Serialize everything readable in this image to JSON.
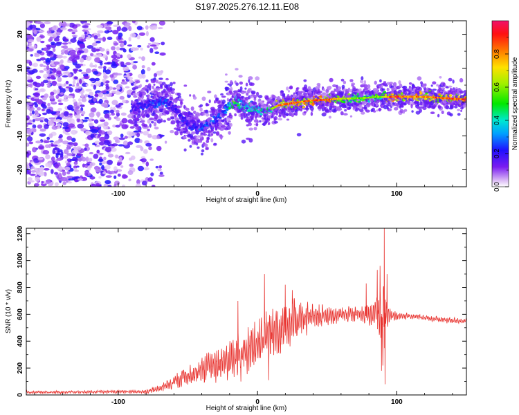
{
  "title": "S197.2025.276.12.11.E08",
  "chart_data": [
    {
      "type": "heatmap",
      "xlabel": "Height of straight line (km)",
      "ylabel": "Frequency (Hz)",
      "xlim": [
        -166,
        150
      ],
      "ylim": [
        -25,
        24
      ],
      "xticks": [
        -100,
        0,
        100
      ],
      "xtick_labels": [
        "-100",
        "0",
        "100"
      ],
      "yticks": [
        20,
        10,
        0,
        -10,
        -20
      ],
      "ytick_labels": [
        "20",
        "10",
        "0",
        "-10",
        "-20"
      ],
      "colorbar": {
        "label": "Normalized spectral amplitude",
        "range": [
          0,
          1
        ],
        "ticks": [
          0.0,
          0.2,
          0.4,
          0.6,
          0.8
        ],
        "tick_labels": [
          "0.0",
          "0.2",
          "0.4",
          "0.6",
          "0.8"
        ]
      },
      "ridge": {
        "x": [
          -88,
          -80,
          -72,
          -66,
          -62,
          -57,
          -52,
          -47,
          -42,
          -37,
          -32,
          -27,
          -22,
          -18,
          -15,
          -11,
          -6,
          0,
          5,
          10,
          15,
          22,
          30,
          40,
          50,
          60,
          70,
          80,
          85,
          90,
          95,
          100,
          110,
          120,
          130,
          140,
          148
        ],
        "y": [
          -1.5,
          -1,
          0,
          0.5,
          -1,
          -3,
          -6,
          -7,
          -7.5,
          -7,
          -6,
          -4,
          -2,
          -0.5,
          0,
          -1,
          -1.5,
          -2,
          -2.5,
          -2,
          -1,
          -0.5,
          0,
          0.5,
          0.7,
          1,
          1.1,
          1.3,
          1.5,
          1.5,
          1.5,
          1.6,
          1.6,
          1.5,
          1.3,
          1.0,
          0.8
        ],
        "amplitude": [
          0.25,
          0.25,
          0.3,
          0.3,
          0.25,
          0.25,
          0.25,
          0.25,
          0.3,
          0.3,
          0.3,
          0.3,
          0.35,
          0.6,
          0.6,
          0.45,
          0.45,
          0.5,
          0.5,
          0.55,
          0.8,
          0.85,
          0.85,
          0.85,
          0.9,
          0.7,
          0.6,
          0.6,
          0.6,
          0.6,
          0.85,
          0.9,
          0.85,
          0.8,
          0.85,
          0.9,
          0.9
        ]
      },
      "noise_region_x": [
        -166,
        -78
      ]
    },
    {
      "type": "line",
      "xlabel": "Height of straight line (km)",
      "ylabel": "SNR (10 * v/v)",
      "xlim": [
        -166,
        150
      ],
      "ylim": [
        0,
        1240
      ],
      "xticks": [
        -100,
        0,
        100
      ],
      "xtick_labels": [
        "-100",
        "0",
        "100"
      ],
      "yticks": [
        0,
        200,
        400,
        600,
        800,
        1000,
        1200
      ],
      "ytick_labels": [
        "0",
        "200",
        "400",
        "600",
        "800",
        "1000",
        "1200"
      ],
      "color": "#e8322e",
      "envelope": {
        "x": [
          -166,
          -120,
          -80,
          -70,
          -60,
          -50,
          -40,
          -30,
          -20,
          -10,
          0,
          10,
          20,
          30,
          40,
          50,
          60,
          70,
          80,
          88,
          90,
          92,
          95,
          100,
          110,
          120,
          130,
          140,
          150
        ],
        "base": [
          20,
          22,
          25,
          50,
          100,
          150,
          190,
          220,
          260,
          320,
          390,
          460,
          520,
          560,
          580,
          590,
          595,
          600,
          600,
          600,
          560,
          580,
          600,
          590,
          585,
          575,
          560,
          555,
          550
        ],
        "spread": [
          15,
          15,
          20,
          40,
          80,
          110,
          140,
          170,
          200,
          240,
          260,
          280,
          260,
          200,
          140,
          100,
          90,
          90,
          100,
          220,
          560,
          260,
          80,
          40,
          30,
          30,
          30,
          30,
          30
        ]
      },
      "spikes": [
        {
          "x": -14,
          "y": 700
        },
        {
          "x": -12,
          "y": 100
        },
        {
          "x": 5,
          "y": 900
        },
        {
          "x": 8,
          "y": 110
        },
        {
          "x": 20,
          "y": 820
        },
        {
          "x": 25,
          "y": 780
        },
        {
          "x": 78,
          "y": 830
        },
        {
          "x": 86,
          "y": 930
        },
        {
          "x": 88,
          "y": 960
        },
        {
          "x": 89,
          "y": 180
        },
        {
          "x": 91,
          "y": 1240
        },
        {
          "x": 91.5,
          "y": 80
        },
        {
          "x": 93,
          "y": 900
        }
      ]
    }
  ]
}
